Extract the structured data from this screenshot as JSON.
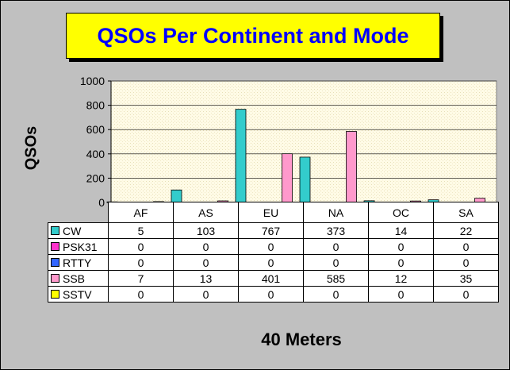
{
  "title": "QSOs Per Continent and Mode",
  "chart_data": {
    "type": "bar",
    "title": "QSOs Per Continent and Mode",
    "xlabel": "40 Meters",
    "ylabel": "QSOs",
    "ylim": [
      0,
      1000
    ],
    "yticks": [
      0,
      200,
      400,
      600,
      800,
      1000
    ],
    "categories": [
      "AF",
      "AS",
      "EU",
      "NA",
      "OC",
      "SA"
    ],
    "grid": true,
    "legend": "data-table",
    "series": [
      {
        "name": "CW",
        "color": "#33cccc",
        "values": [
          5,
          103,
          767,
          373,
          14,
          22
        ]
      },
      {
        "name": "PSK31",
        "color": "#ff33cc",
        "values": [
          0,
          0,
          0,
          0,
          0,
          0
        ]
      },
      {
        "name": "RTTY",
        "color": "#3366ff",
        "values": [
          0,
          0,
          0,
          0,
          0,
          0
        ]
      },
      {
        "name": "SSB",
        "color": "#ff99cc",
        "values": [
          7,
          13,
          401,
          585,
          12,
          35
        ]
      },
      {
        "name": "SSTV",
        "color": "#ffff00",
        "values": [
          0,
          0,
          0,
          0,
          0,
          0
        ]
      }
    ]
  }
}
